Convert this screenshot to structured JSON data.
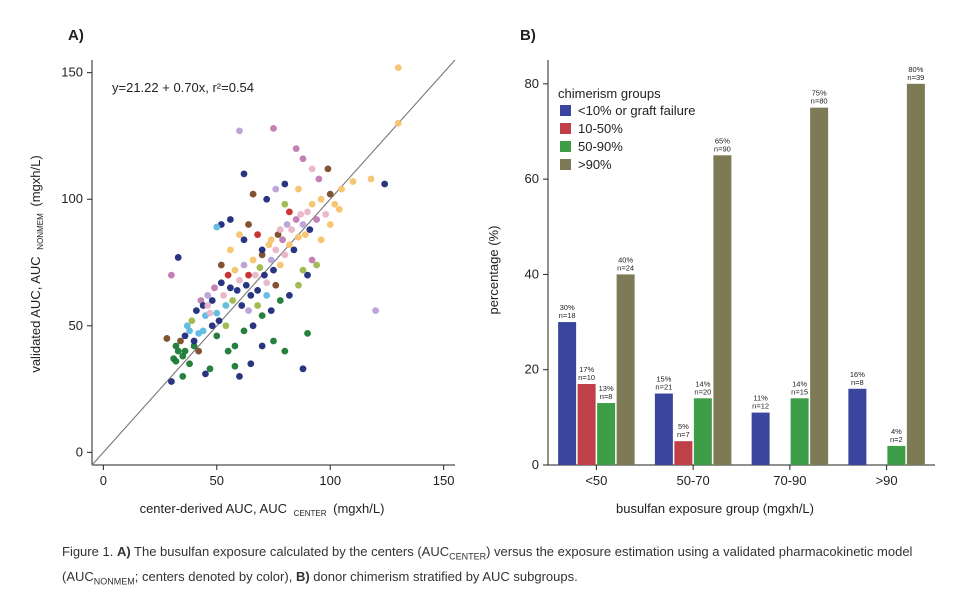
{
  "chart_data": [
    {
      "type": "scatter",
      "panel_label": "A)",
      "xlabel": "center-derived AUC, AUC",
      "xlabel_sub": "CENTER",
      "xlabel_unit": "(mgxh/L)",
      "ylabel": "validated AUC, AUC",
      "ylabel_sub": "NONMEM",
      "ylabel_unit": "(mgxh/L)",
      "xlim": [
        -5,
        155
      ],
      "ylim": [
        -5,
        155
      ],
      "xticks": [
        "0",
        "50",
        "100",
        "150"
      ],
      "yticks": [
        "0",
        "50",
        "100",
        "150"
      ],
      "xtick_values": [
        0,
        50,
        100,
        150
      ],
      "ytick_values": [
        0,
        50,
        100,
        150
      ],
      "annotation": "y=21.22 + 0.70x, r²=0.54",
      "regression": {
        "intercept": 21.22,
        "slope": 0.7
      },
      "identity_line": true,
      "grid": false,
      "center_colors": [
        "#1f2a7a",
        "#e8b4c8",
        "#5fb8e0",
        "#f5c36a",
        "#1a7a34",
        "#7a4a28",
        "#9cb84a",
        "#c07ab0",
        "#b9a0d8",
        "#c62a2a"
      ],
      "points": [
        [
          30,
          28,
          0
        ],
        [
          31,
          37,
          4
        ],
        [
          32,
          42,
          4
        ],
        [
          33,
          40,
          4
        ],
        [
          34,
          44,
          5
        ],
        [
          35,
          38,
          4
        ],
        [
          36,
          46,
          0
        ],
        [
          37,
          50,
          2
        ],
        [
          38,
          48,
          2
        ],
        [
          39,
          52,
          6
        ],
        [
          40,
          42,
          4
        ],
        [
          41,
          56,
          0
        ],
        [
          42,
          47,
          2
        ],
        [
          43,
          60,
          7
        ],
        [
          44,
          58,
          0
        ],
        [
          45,
          54,
          2
        ],
        [
          46,
          62,
          8
        ],
        [
          47,
          55,
          1
        ],
        [
          48,
          60,
          0
        ],
        [
          49,
          65,
          7
        ],
        [
          50,
          55,
          2
        ],
        [
          51,
          52,
          0
        ],
        [
          52,
          67,
          0
        ],
        [
          53,
          62,
          1
        ],
        [
          54,
          58,
          2
        ],
        [
          55,
          70,
          9
        ],
        [
          56,
          65,
          0
        ],
        [
          57,
          60,
          6
        ],
        [
          58,
          72,
          3
        ],
        [
          59,
          64,
          0
        ],
        [
          60,
          68,
          1
        ],
        [
          61,
          58,
          0
        ],
        [
          62,
          74,
          8
        ],
        [
          63,
          66,
          0
        ],
        [
          64,
          70,
          9
        ],
        [
          65,
          62,
          0
        ],
        [
          66,
          76,
          3
        ],
        [
          67,
          70,
          1
        ],
        [
          68,
          64,
          0
        ],
        [
          69,
          73,
          6
        ],
        [
          70,
          78,
          5
        ],
        [
          71,
          70,
          0
        ],
        [
          72,
          67,
          1
        ],
        [
          73,
          82,
          3
        ],
        [
          74,
          76,
          8
        ],
        [
          75,
          72,
          0
        ],
        [
          76,
          80,
          1
        ],
        [
          77,
          86,
          5
        ],
        [
          78,
          74,
          3
        ],
        [
          79,
          84,
          7
        ],
        [
          80,
          78,
          1
        ],
        [
          81,
          90,
          8
        ],
        [
          82,
          82,
          3
        ],
        [
          83,
          88,
          1
        ],
        [
          84,
          80,
          0
        ],
        [
          85,
          92,
          7
        ],
        [
          86,
          85,
          3
        ],
        [
          87,
          94,
          1
        ],
        [
          88,
          90,
          8
        ],
        [
          89,
          86,
          3
        ],
        [
          90,
          95,
          1
        ],
        [
          91,
          88,
          0
        ],
        [
          92,
          98,
          3
        ],
        [
          94,
          92,
          7
        ],
        [
          96,
          100,
          3
        ],
        [
          98,
          94,
          1
        ],
        [
          100,
          102,
          5
        ],
        [
          102,
          98,
          3
        ],
        [
          105,
          104,
          3
        ],
        [
          52,
          90,
          0
        ],
        [
          60,
          127,
          8
        ],
        [
          62,
          110,
          0
        ],
        [
          66,
          102,
          5
        ],
        [
          75,
          128,
          7
        ],
        [
          80,
          98,
          6
        ],
        [
          85,
          120,
          7
        ],
        [
          88,
          116,
          7
        ],
        [
          99,
          112,
          5
        ],
        [
          110,
          107,
          3
        ],
        [
          118,
          108,
          3
        ],
        [
          124,
          106,
          0
        ],
        [
          130,
          152,
          3
        ],
        [
          130,
          130,
          3
        ],
        [
          120,
          56,
          8
        ],
        [
          90,
          47,
          4
        ],
        [
          88,
          33,
          0
        ],
        [
          80,
          40,
          4
        ],
        [
          75,
          44,
          4
        ],
        [
          70,
          42,
          0
        ],
        [
          65,
          35,
          0
        ],
        [
          60,
          30,
          0
        ],
        [
          58,
          34,
          4
        ],
        [
          55,
          40,
          4
        ],
        [
          50,
          46,
          4
        ],
        [
          47,
          33,
          4
        ],
        [
          45,
          31,
          0
        ],
        [
          42,
          40,
          5
        ],
        [
          38,
          35,
          4
        ],
        [
          35,
          30,
          4
        ],
        [
          32,
          36,
          4
        ],
        [
          28,
          45,
          5
        ],
        [
          30,
          70,
          7
        ],
        [
          33,
          77,
          0
        ],
        [
          50,
          89,
          2
        ],
        [
          56,
          92,
          0
        ],
        [
          62,
          84,
          0
        ],
        [
          68,
          86,
          9
        ],
        [
          72,
          100,
          0
        ],
        [
          76,
          104,
          8
        ],
        [
          80,
          106,
          0
        ],
        [
          82,
          95,
          9
        ],
        [
          86,
          104,
          3
        ],
        [
          92,
          112,
          1
        ],
        [
          95,
          108,
          7
        ],
        [
          58,
          42,
          4
        ],
        [
          62,
          48,
          4
        ],
        [
          66,
          50,
          0
        ],
        [
          70,
          54,
          4
        ],
        [
          74,
          56,
          0
        ],
        [
          78,
          60,
          4
        ],
        [
          82,
          62,
          0
        ],
        [
          86,
          66,
          6
        ],
        [
          90,
          70,
          0
        ],
        [
          94,
          74,
          6
        ],
        [
          64,
          56,
          8
        ],
        [
          68,
          58,
          6
        ],
        [
          72,
          62,
          2
        ],
        [
          76,
          66,
          5
        ],
        [
          54,
          50,
          6
        ],
        [
          48,
          50,
          0
        ],
        [
          44,
          48,
          2
        ],
        [
          40,
          44,
          0
        ],
        [
          36,
          40,
          4
        ],
        [
          46,
          58,
          1
        ],
        [
          52,
          74,
          5
        ],
        [
          56,
          80,
          3
        ],
        [
          60,
          86,
          3
        ],
        [
          64,
          90,
          5
        ],
        [
          88,
          72,
          6
        ],
        [
          92,
          76,
          7
        ],
        [
          96,
          84,
          3
        ],
        [
          100,
          90,
          3
        ],
        [
          104,
          96,
          3
        ],
        [
          70,
          80,
          0
        ],
        [
          74,
          84,
          3
        ],
        [
          78,
          88,
          1
        ]
      ]
    },
    {
      "type": "bar",
      "panel_label": "B)",
      "xlabel": "busulfan exposure group (mgxh/L)",
      "ylabel": "percentage (%)",
      "ylim": [
        0,
        85
      ],
      "yticks": [
        "0",
        "20",
        "40",
        "60",
        "80"
      ],
      "ytick_values": [
        0,
        20,
        40,
        60,
        80
      ],
      "categories": [
        "<50",
        "50-70",
        "70-90",
        ">90"
      ],
      "legend_title": "chimerism groups",
      "legend_position": "top-left",
      "grid": false,
      "series": [
        {
          "name": "<10% or graft failure",
          "color": "#3a469e",
          "values": [
            30,
            15,
            11,
            16
          ],
          "labels": [
            "30%",
            "15%",
            "11%",
            "16%"
          ],
          "n": [
            "n=18",
            "n=21",
            "n=12",
            "n=8"
          ]
        },
        {
          "name": "10-50%",
          "color": "#c0404a",
          "values": [
            17,
            5,
            null,
            null
          ],
          "labels": [
            "17%",
            "5%",
            "",
            ""
          ],
          "n": [
            "n=10",
            "n=7",
            "",
            ""
          ]
        },
        {
          "name": "50-90%",
          "color": "#3e9e48",
          "values": [
            13,
            14,
            14,
            4
          ],
          "labels": [
            "13%",
            "14%",
            "14%",
            "4%"
          ],
          "n": [
            "n=8",
            "n=20",
            "n=15",
            "n=2"
          ]
        },
        {
          "name": ">90%",
          "color": "#7f7a56",
          "values": [
            40,
            65,
            75,
            80
          ],
          "labels": [
            "40%",
            "65%",
            "75%",
            "80%"
          ],
          "n": [
            "n=24",
            "n=90",
            "n=80",
            "n=39"
          ]
        }
      ]
    }
  ],
  "caption": {
    "fig": "Figure 1.",
    "a_label": "A)",
    "a_text_1": " The busulfan exposure calculated by the centers (AUC",
    "a_sub_1": "CENTER",
    "a_text_2": ") versus the exposure estimation using a validated pharmacokinetic model (AUC",
    "a_sub_2": "NONMEM",
    "a_text_3": "; centers denoted by color), ",
    "b_label": "B)",
    "b_text": " donor chimerism stratified by AUC subgroups."
  }
}
